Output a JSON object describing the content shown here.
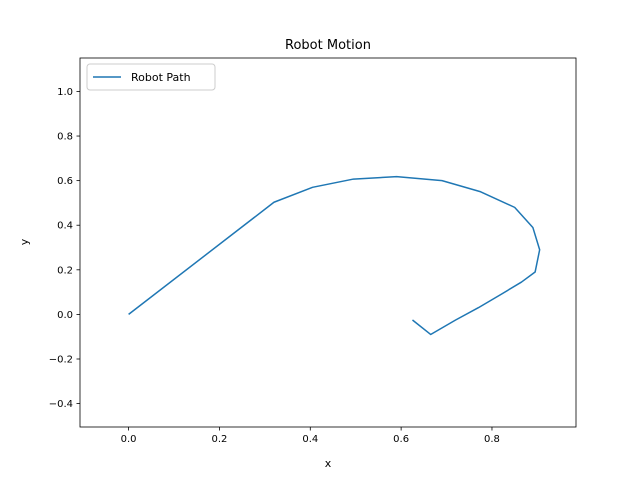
{
  "chart_data": {
    "type": "line",
    "title": "Robot Motion",
    "xlabel": "x",
    "ylabel": "y",
    "xlim": [
      -0.107,
      0.985
    ],
    "ylim": [
      -0.505,
      1.15
    ],
    "xticks": [
      0.0,
      0.2,
      0.4,
      0.6,
      0.8
    ],
    "xtick_labels": [
      "0.0",
      "0.2",
      "0.4",
      "0.6",
      "0.8"
    ],
    "yticks": [
      -0.4,
      -0.2,
      0.0,
      0.2,
      0.4,
      0.6,
      0.8,
      1.0
    ],
    "ytick_labels": [
      "−0.4",
      "−0.2",
      "0.0",
      "0.2",
      "0.4",
      "0.6",
      "0.8",
      "1.0"
    ],
    "grid": false,
    "legend_position": "top-left",
    "series": [
      {
        "name": "Robot Path",
        "color": "#1f77b4",
        "x": [
          0.0,
          0.32,
          0.405,
          0.495,
          0.59,
          0.69,
          0.775,
          0.85,
          0.89,
          0.905,
          0.895,
          0.865,
          0.82,
          0.77,
          0.72,
          0.665,
          0.625
        ],
        "y": [
          0.0,
          0.503,
          0.57,
          0.607,
          0.618,
          0.6,
          0.55,
          0.48,
          0.39,
          0.29,
          0.19,
          0.145,
          0.09,
          0.03,
          -0.025,
          -0.09,
          -0.025
        ]
      }
    ]
  }
}
